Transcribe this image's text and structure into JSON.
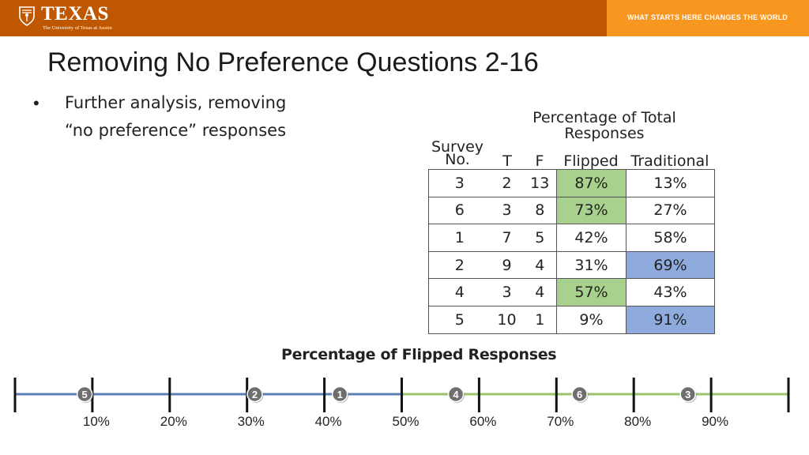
{
  "header": {
    "logo_word": "TEXAS",
    "logo_sub": "The University of Texas at Austin",
    "tagline": "WHAT STARTS HERE CHANGES THE WORLD",
    "colors": {
      "burnt_orange": "#bf5700",
      "orange": "#f8971f"
    }
  },
  "title": "Removing No Preference Questions 2-16",
  "bullet": {
    "line1": "Further analysis, removing",
    "line2": "“no preference” responses"
  },
  "table": {
    "group_header": "Percentage of Total Responses",
    "survey_header_line1": "Survey",
    "survey_header_line2": "No.",
    "col_t": "T",
    "col_f": "F",
    "col_flipped": "Flipped",
    "col_traditional": "Traditional",
    "rows": [
      {
        "survey": "3",
        "t": "2",
        "f": "13",
        "flipped": "87%",
        "traditional": "13%",
        "highlight": "flipped"
      },
      {
        "survey": "6",
        "t": "3",
        "f": "8",
        "flipped": "73%",
        "traditional": "27%",
        "highlight": "flipped"
      },
      {
        "survey": "1",
        "t": "7",
        "f": "5",
        "flipped": "42%",
        "traditional": "58%",
        "highlight": "none"
      },
      {
        "survey": "2",
        "t": "9",
        "f": "4",
        "flipped": "31%",
        "traditional": "69%",
        "highlight": "traditional"
      },
      {
        "survey": "4",
        "t": "3",
        "f": "4",
        "flipped": "57%",
        "traditional": "43%",
        "highlight": "flipped"
      },
      {
        "survey": "5",
        "t": "10",
        "f": "1",
        "flipped": "9%",
        "traditional": "91%",
        "highlight": "traditional"
      }
    ],
    "colors": {
      "flipped_highlight": "#a9d18e",
      "traditional_highlight": "#8faadc"
    }
  },
  "number_line": {
    "title": "Percentage of Flipped Responses",
    "min": 0,
    "max": 100,
    "ticks": [
      10,
      20,
      30,
      40,
      50,
      60,
      70,
      80,
      90
    ],
    "tick_labels": [
      "10%",
      "20%",
      "30%",
      "40%",
      "50%",
      "60%",
      "70%",
      "80%",
      "90%"
    ],
    "midpoint": 50,
    "left_color": "#5b7fb5",
    "right_color": "#9bc36a",
    "markers": [
      {
        "label": "5",
        "value": 9
      },
      {
        "label": "2",
        "value": 31
      },
      {
        "label": "1",
        "value": 42
      },
      {
        "label": "4",
        "value": 57
      },
      {
        "label": "6",
        "value": 73
      },
      {
        "label": "3",
        "value": 87
      }
    ]
  }
}
